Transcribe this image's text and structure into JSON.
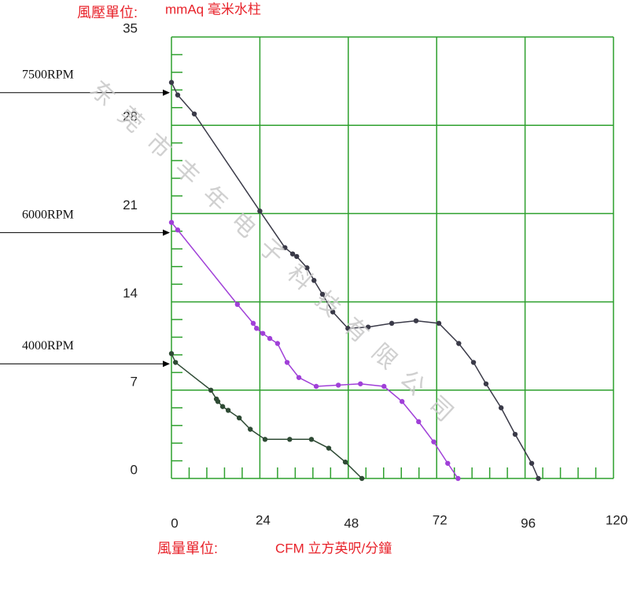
{
  "chart_data": {
    "type": "line",
    "y_unit_label": "風壓單位:",
    "y_unit": "mmAq 毫米水柱",
    "x_unit_label": "風量單位:",
    "x_unit": "CFM 立方英呎/分鐘",
    "watermark": "东莞市丰年电子科技有限公司",
    "xlim": [
      0,
      120
    ],
    "xticks": [
      0,
      24,
      48,
      72,
      96,
      120
    ],
    "ylim": [
      0,
      35
    ],
    "yticks": [
      0,
      7,
      14,
      21,
      28,
      35
    ],
    "x_minor_ticks": [
      4.8,
      9.6,
      14.4,
      19.2,
      28.8,
      33.6,
      38.4,
      43.2,
      52.8,
      57.6,
      62.4,
      67.2,
      76.8,
      81.6,
      86.4,
      91.2,
      100.8,
      105.6,
      110.4,
      115.2
    ],
    "y_minor_ticks": [
      1.4,
      2.8,
      4.2,
      5.6,
      8.4,
      9.8,
      11.2,
      12.6,
      15.4,
      16.8,
      18.2,
      19.6,
      22.4,
      23.8,
      25.2,
      26.6,
      29.4,
      30.8,
      32.2,
      33.6
    ],
    "grid": true,
    "grid_color": "#2ea02e",
    "series": [
      {
        "name": "7500RPM",
        "color": "#3a3a48",
        "x": [
          0,
          1.7,
          6.2,
          24,
          30.8,
          32.9,
          34,
          36.8,
          38.7,
          41.0,
          43.8,
          47.9,
          53.4,
          59.8,
          66.4,
          72.6,
          78.0,
          82.0,
          85.4,
          89.5,
          93.3,
          97.8,
          99.6
        ],
        "values": [
          31.4,
          30.4,
          28.9,
          21.2,
          18.3,
          17.8,
          17.6,
          16.7,
          15.7,
          14.6,
          13.2,
          11.9,
          12.0,
          12.3,
          12.5,
          12.3,
          10.7,
          9.2,
          7.5,
          5.6,
          3.5,
          1.2,
          0
        ]
      },
      {
        "name": "6000RPM",
        "color": "#a040d8",
        "x": [
          0,
          1.7,
          17.9,
          22.2,
          23.1,
          24.8,
          26.7,
          28.8,
          31.4,
          34.6,
          39.3,
          45.3,
          51.3,
          57.7,
          62.6,
          67.1,
          71.2,
          75.0,
          77.8
        ],
        "values": [
          20.3,
          19.7,
          13.8,
          12.3,
          11.9,
          11.5,
          11.1,
          10.7,
          9.2,
          8.0,
          7.3,
          7.4,
          7.5,
          7.3,
          6.1,
          4.5,
          2.9,
          1.2,
          0
        ]
      },
      {
        "name": "4000RPM",
        "color": "#2e4a34",
        "x": [
          0,
          1.1,
          10.7,
          12.2,
          12.6,
          13.9,
          15.4,
          18.4,
          21.4,
          25.4,
          32.1,
          38.0,
          42.7,
          47.2,
          51.7
        ],
        "values": [
          9.9,
          9.2,
          7.0,
          6.3,
          6.1,
          5.7,
          5.4,
          4.8,
          3.9,
          3.1,
          3.1,
          3.1,
          2.4,
          1.3,
          0
        ]
      }
    ]
  }
}
